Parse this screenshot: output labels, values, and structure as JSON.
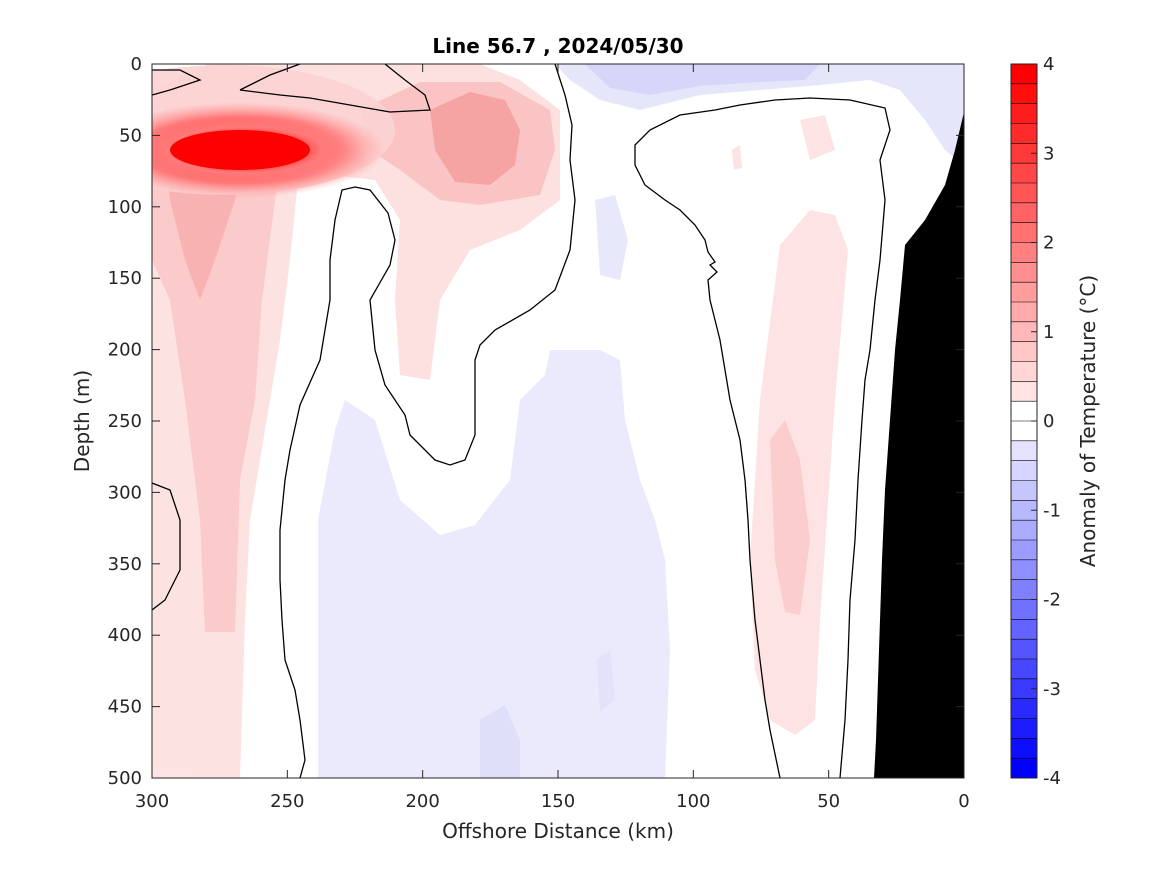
{
  "chart_data": {
    "type": "contour",
    "title": "Line 56.7 , 2024/05/30",
    "xlabel": "Offshore Distance (km)",
    "ylabel": "Depth (m)",
    "colorbar_label": "Anomaly of Temperature (°C)",
    "xlim": [
      300,
      0
    ],
    "ylim": [
      0,
      500
    ],
    "x_ticks": [
      "300",
      "250",
      "200",
      "150",
      "100",
      "50",
      "0"
    ],
    "y_ticks": [
      "0",
      "50",
      "100",
      "150",
      "200",
      "250",
      "300",
      "350",
      "400",
      "450",
      "500"
    ],
    "colorbar_ticks": [
      "4",
      "3",
      "2",
      "1",
      "0",
      "-1",
      "-2",
      "-3",
      "-4"
    ],
    "colorbar_range": [
      -4,
      4
    ],
    "colorbar_levels": 36,
    "contour_line_level": 0,
    "colors": {
      "warm": "#ff0000",
      "cold": "#0000ff",
      "neutral": "#ffffff",
      "bottom": "#000000"
    },
    "features": [
      {
        "name": "warm core",
        "x_km": [
          300,
          240
        ],
        "depth_m": [
          25,
          95
        ],
        "max_anomaly": 4
      },
      {
        "name": "warm patch",
        "x_km": [
          200,
          150
        ],
        "depth_m": [
          25,
          120
        ],
        "max_anomaly": 1.8
      },
      {
        "name": "warm tongue",
        "x_km": [
          300,
          250
        ],
        "depth_m": [
          90,
          480
        ],
        "max_anomaly": 1.3
      },
      {
        "name": "warm band",
        "x_km": [
          90,
          45
        ],
        "depth_m": [
          80,
          500
        ],
        "max_anomaly": 0.6
      },
      {
        "name": "cool mid section",
        "x_km": [
          250,
          100
        ],
        "depth_m": [
          200,
          500
        ],
        "max_anomaly": -0.4
      },
      {
        "name": "cool surface",
        "x_km": [
          150,
          0
        ],
        "depth_m": [
          0,
          40
        ],
        "max_anomaly": -0.8
      }
    ]
  }
}
